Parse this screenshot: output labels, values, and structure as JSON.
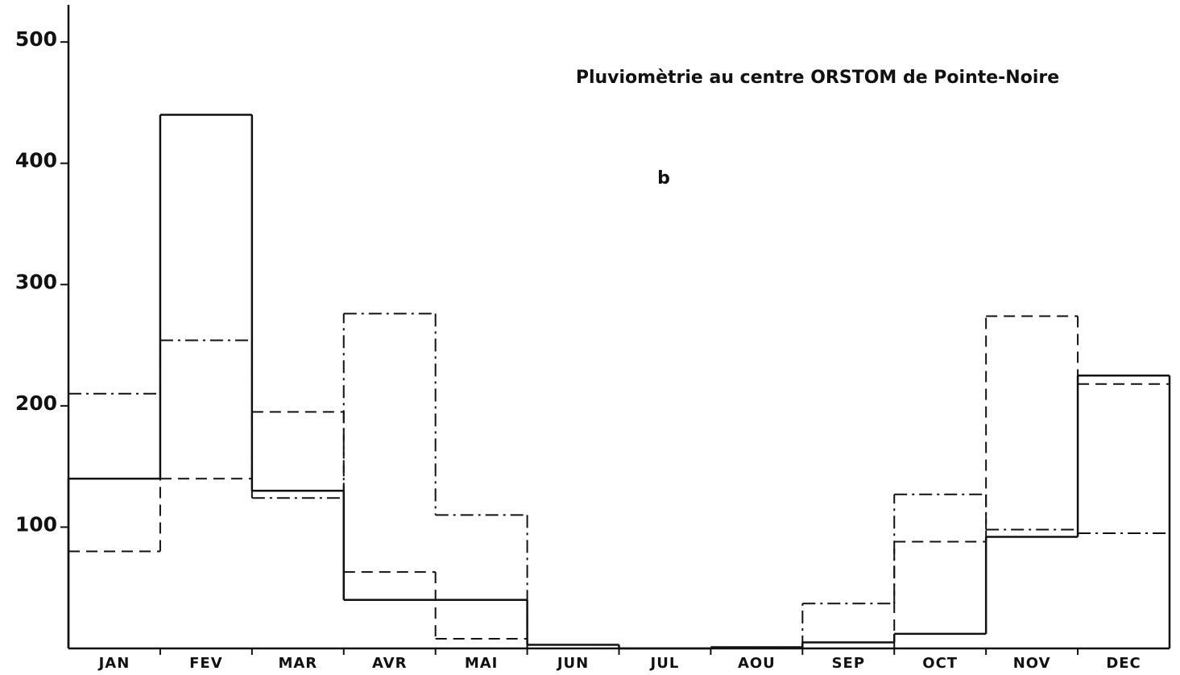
{
  "chart_data": {
    "type": "step",
    "title": "Pluviomètrie au centre ORSTOM de Pointe-Noire",
    "annotation": "b",
    "categories": [
      "JAN",
      "FEV",
      "MAR",
      "AVR",
      "MAI",
      "JUN",
      "JUL",
      "AOU",
      "SEP",
      "OCT",
      "NOV",
      "DEC"
    ],
    "series": [
      {
        "color": "#111111",
        "dash": "solid",
        "values": [
          140,
          440,
          130,
          40,
          40,
          3,
          0,
          1,
          5,
          12,
          92,
          225
        ]
      },
      {
        "color": "#111111",
        "dash": "dashed",
        "values": [
          80,
          140,
          195,
          63,
          8,
          0,
          0,
          0,
          0,
          88,
          274,
          218
        ]
      },
      {
        "color": "#111111",
        "dash": "dashdot",
        "values": [
          210,
          254,
          124,
          276,
          110,
          0,
          0,
          0,
          37,
          127,
          98,
          95
        ]
      }
    ],
    "ylim": [
      0,
      528
    ],
    "yticks": [
      100,
      200,
      300,
      400,
      500
    ],
    "grid": false
  }
}
